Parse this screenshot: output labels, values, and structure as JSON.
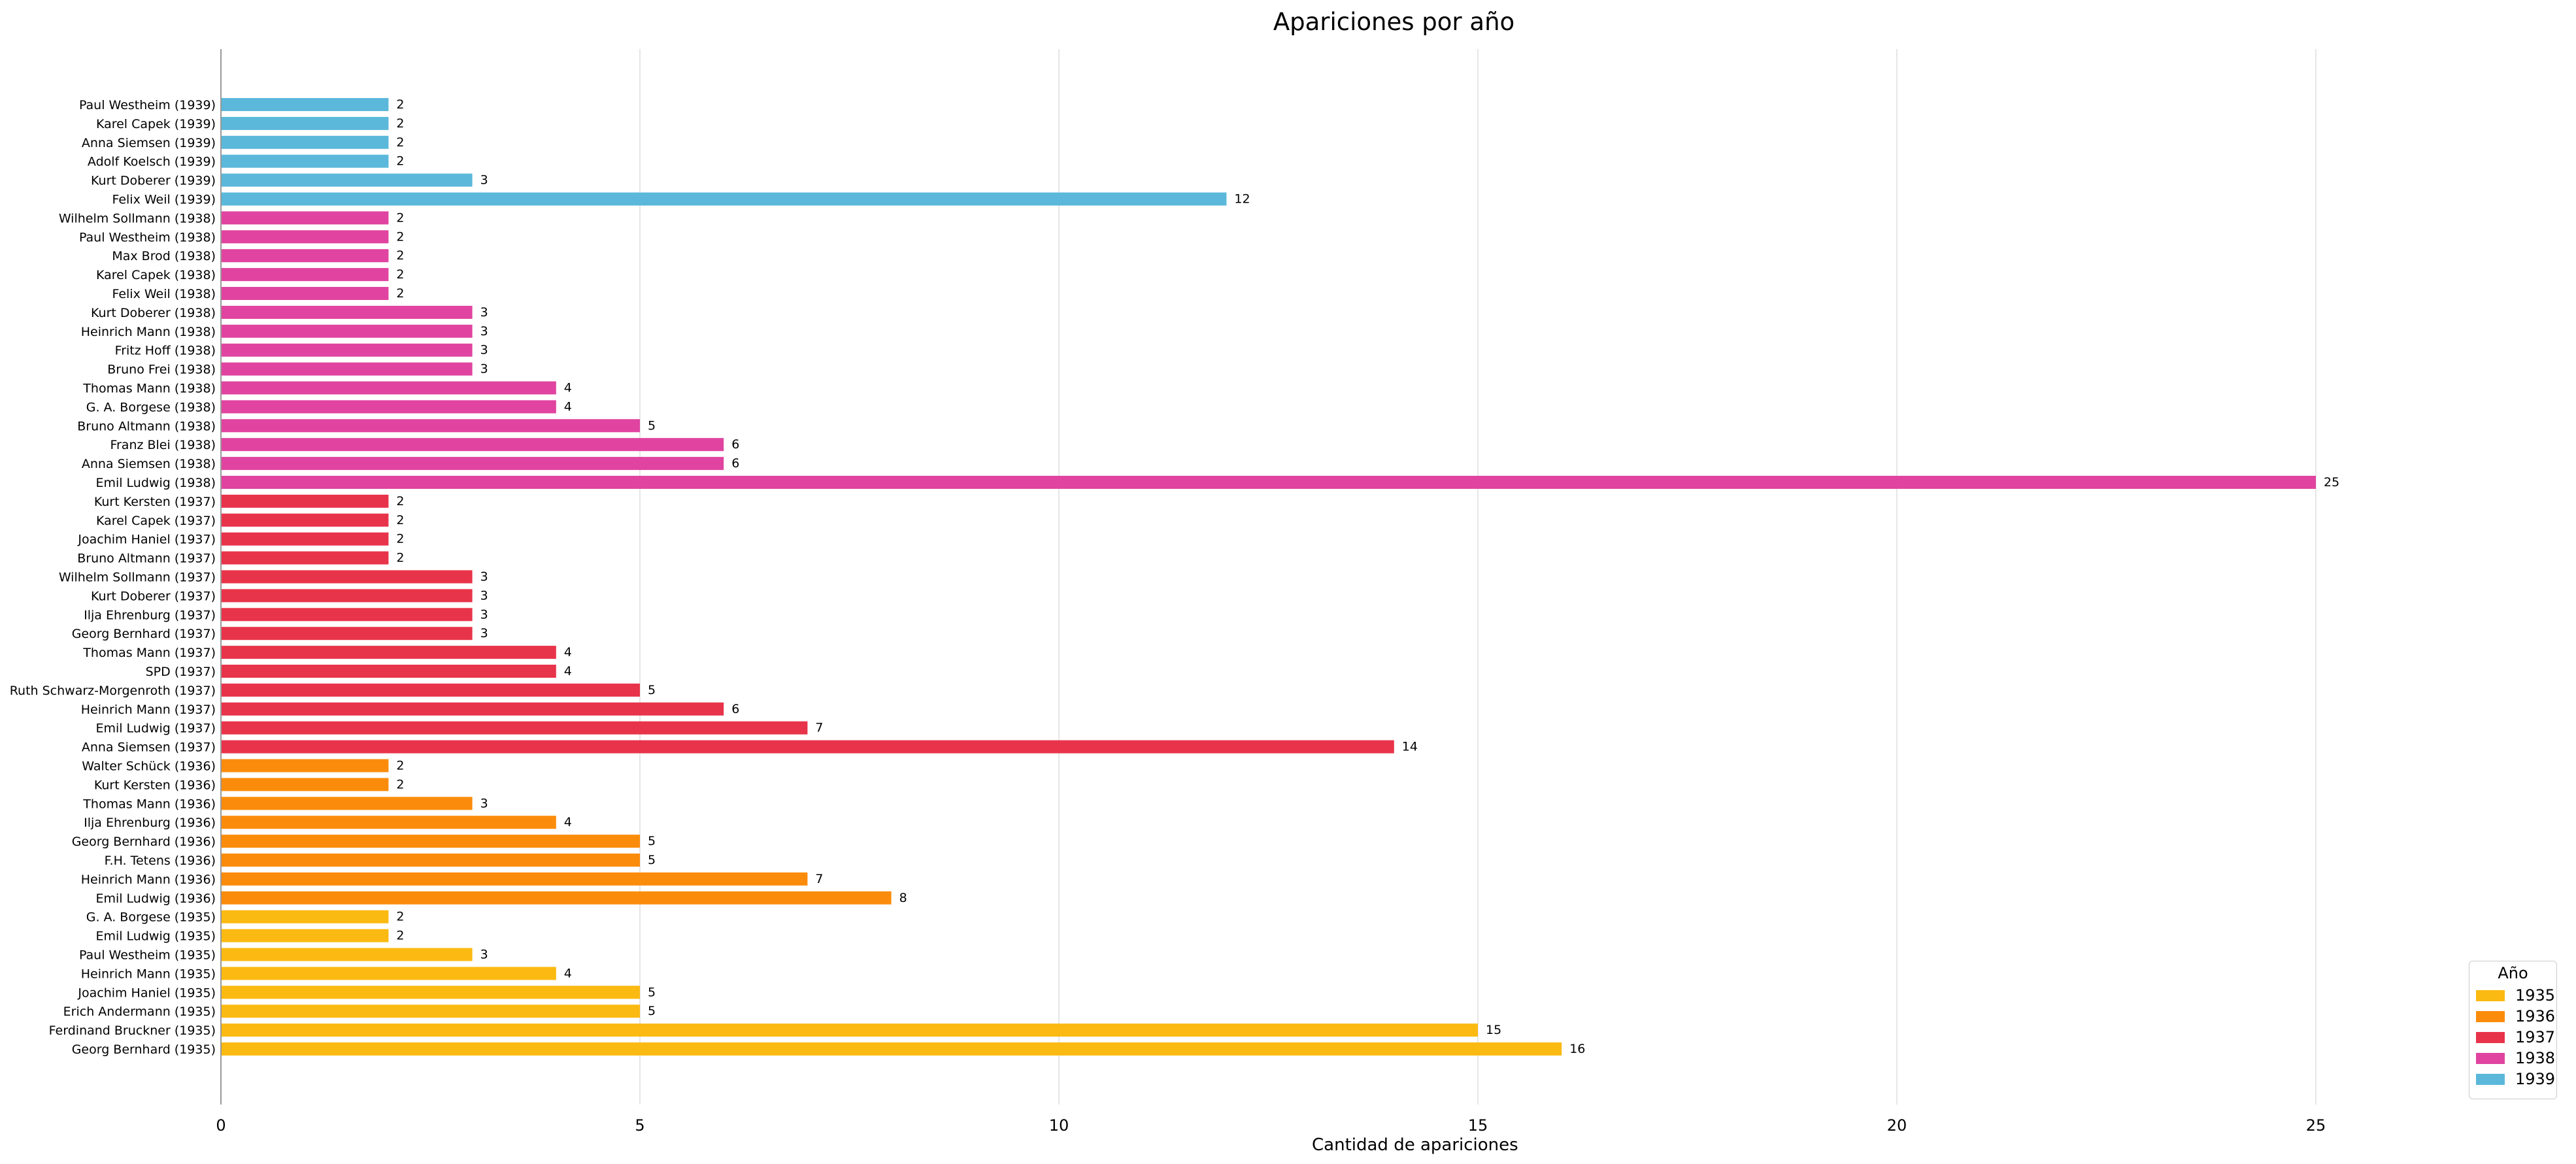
{
  "chart_data": {
    "type": "bar",
    "orientation": "horizontal",
    "title": "Apariciones por año",
    "xlabel": "Cantidad de apariciones",
    "ylabel": "",
    "xlim": [
      0,
      27.5
    ],
    "xticks": [
      0,
      5,
      10,
      15,
      20,
      25
    ],
    "grid": "vertical",
    "legend": {
      "title": "Año",
      "placement": "bottom-right",
      "entries": [
        {
          "label": "1935",
          "color": "#FBBA12"
        },
        {
          "label": "1936",
          "color": "#FB8C0B"
        },
        {
          "label": "1937",
          "color": "#E8344A"
        },
        {
          "label": "1938",
          "color": "#E044A0"
        },
        {
          "label": "1939",
          "color": "#5BB8DB"
        }
      ]
    },
    "bars": [
      {
        "label": "Paul Westheim (1939)",
        "value": 2,
        "year": "1939"
      },
      {
        "label": "Karel Capek (1939)",
        "value": 2,
        "year": "1939"
      },
      {
        "label": "Anna Siemsen (1939)",
        "value": 2,
        "year": "1939"
      },
      {
        "label": "Adolf Koelsch (1939)",
        "value": 2,
        "year": "1939"
      },
      {
        "label": "Kurt Doberer (1939)",
        "value": 3,
        "year": "1939"
      },
      {
        "label": "Felix Weil (1939)",
        "value": 12,
        "year": "1939"
      },
      {
        "label": "Wilhelm Sollmann (1938)",
        "value": 2,
        "year": "1938"
      },
      {
        "label": "Paul Westheim (1938)",
        "value": 2,
        "year": "1938"
      },
      {
        "label": "Max Brod (1938)",
        "value": 2,
        "year": "1938"
      },
      {
        "label": "Karel Capek (1938)",
        "value": 2,
        "year": "1938"
      },
      {
        "label": "Felix Weil (1938)",
        "value": 2,
        "year": "1938"
      },
      {
        "label": "Kurt Doberer (1938)",
        "value": 3,
        "year": "1938"
      },
      {
        "label": "Heinrich Mann (1938)",
        "value": 3,
        "year": "1938"
      },
      {
        "label": "Fritz Hoff (1938)",
        "value": 3,
        "year": "1938"
      },
      {
        "label": "Bruno Frei (1938)",
        "value": 3,
        "year": "1938"
      },
      {
        "label": "Thomas Mann (1938)",
        "value": 4,
        "year": "1938"
      },
      {
        "label": "G. A. Borgese (1938)",
        "value": 4,
        "year": "1938"
      },
      {
        "label": "Bruno Altmann (1938)",
        "value": 5,
        "year": "1938"
      },
      {
        "label": "Franz Blei (1938)",
        "value": 6,
        "year": "1938"
      },
      {
        "label": "Anna Siemsen (1938)",
        "value": 6,
        "year": "1938"
      },
      {
        "label": "Emil Ludwig (1938)",
        "value": 25,
        "year": "1938"
      },
      {
        "label": "Kurt Kersten (1937)",
        "value": 2,
        "year": "1937"
      },
      {
        "label": "Karel Capek (1937)",
        "value": 2,
        "year": "1937"
      },
      {
        "label": "Joachim Haniel (1937)",
        "value": 2,
        "year": "1937"
      },
      {
        "label": "Bruno Altmann (1937)",
        "value": 2,
        "year": "1937"
      },
      {
        "label": "Wilhelm Sollmann (1937)",
        "value": 3,
        "year": "1937"
      },
      {
        "label": "Kurt Doberer (1937)",
        "value": 3,
        "year": "1937"
      },
      {
        "label": "Ilja Ehrenburg (1937)",
        "value": 3,
        "year": "1937"
      },
      {
        "label": "Georg Bernhard (1937)",
        "value": 3,
        "year": "1937"
      },
      {
        "label": "Thomas Mann (1937)",
        "value": 4,
        "year": "1937"
      },
      {
        "label": "SPD (1937)",
        "value": 4,
        "year": "1937"
      },
      {
        "label": "Ruth Schwarz-Morgenroth (1937)",
        "value": 5,
        "year": "1937"
      },
      {
        "label": "Heinrich Mann (1937)",
        "value": 6,
        "year": "1937"
      },
      {
        "label": "Emil Ludwig (1937)",
        "value": 7,
        "year": "1937"
      },
      {
        "label": "Anna Siemsen (1937)",
        "value": 14,
        "year": "1937"
      },
      {
        "label": "Walter Schück (1936)",
        "value": 2,
        "year": "1936"
      },
      {
        "label": "Kurt Kersten (1936)",
        "value": 2,
        "year": "1936"
      },
      {
        "label": "Thomas Mann (1936)",
        "value": 3,
        "year": "1936"
      },
      {
        "label": "Ilja Ehrenburg (1936)",
        "value": 4,
        "year": "1936"
      },
      {
        "label": "Georg Bernhard (1936)",
        "value": 5,
        "year": "1936"
      },
      {
        "label": "F.H. Tetens (1936)",
        "value": 5,
        "year": "1936"
      },
      {
        "label": "Heinrich Mann (1936)",
        "value": 7,
        "year": "1936"
      },
      {
        "label": "Emil Ludwig (1936)",
        "value": 8,
        "year": "1936"
      },
      {
        "label": "G. A. Borgese (1935)",
        "value": 2,
        "year": "1935"
      },
      {
        "label": "Emil Ludwig (1935)",
        "value": 2,
        "year": "1935"
      },
      {
        "label": "Paul Westheim (1935)",
        "value": 3,
        "year": "1935"
      },
      {
        "label": "Heinrich Mann (1935)",
        "value": 4,
        "year": "1935"
      },
      {
        "label": "Joachim Haniel (1935)",
        "value": 5,
        "year": "1935"
      },
      {
        "label": "Erich Andermann (1935)",
        "value": 5,
        "year": "1935"
      },
      {
        "label": "Ferdinand Bruckner (1935)",
        "value": 15,
        "year": "1935"
      },
      {
        "label": "Georg Bernhard (1935)",
        "value": 16,
        "year": "1935"
      }
    ]
  }
}
